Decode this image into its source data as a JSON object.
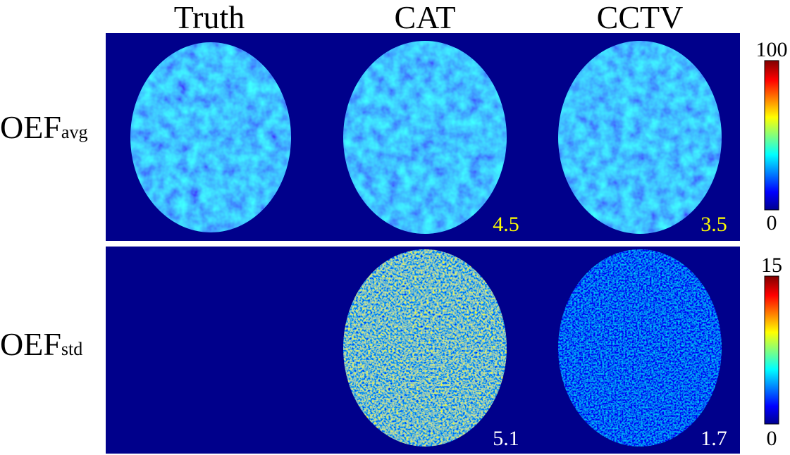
{
  "columns": [
    "Truth",
    "CAT",
    "CCTV"
  ],
  "rows": [
    {
      "label": "OEF",
      "subscript": "avg",
      "scores": [
        4.5,
        3.5
      ],
      "colorbar": {
        "max": 100,
        "min": 0
      }
    },
    {
      "label": "OEF",
      "subscript": "std",
      "scores": [
        5.1,
        1.7
      ],
      "colorbar": {
        "max": 15,
        "min": 0
      }
    }
  ]
}
